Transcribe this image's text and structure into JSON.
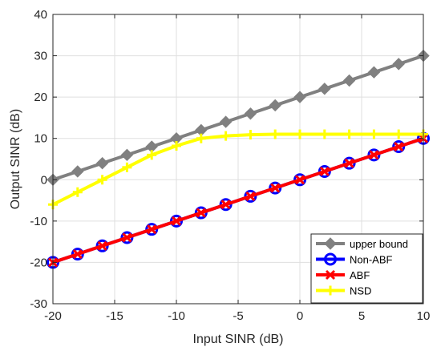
{
  "chart_data": {
    "type": "line",
    "title": "",
    "xlabel": "Input SINR (dB)",
    "ylabel": "Output SINR (dB)",
    "xlim": [
      -20,
      10
    ],
    "ylim": [
      -30,
      40
    ],
    "xticks": [
      -20,
      -15,
      -10,
      -5,
      0,
      5,
      10
    ],
    "yticks": [
      -30,
      -20,
      -10,
      0,
      10,
      20,
      30,
      40
    ],
    "grid": true,
    "legend_position": "bottom-right",
    "x": [
      -20,
      -18,
      -16,
      -14,
      -12,
      -10,
      -8,
      -6,
      -4,
      -2,
      0,
      2,
      4,
      6,
      8,
      10
    ],
    "series": [
      {
        "name": "upper bound",
        "color": "#808080",
        "marker": "diamond",
        "values": [
          0,
          2,
          4,
          6,
          8,
          10,
          12,
          14,
          16,
          18,
          20,
          22,
          24,
          26,
          28,
          30
        ]
      },
      {
        "name": "Non-ABF",
        "color": "#0000ff",
        "marker": "circle",
        "values": [
          -20,
          -18,
          -16,
          -14,
          -12,
          -10,
          -8,
          -6,
          -4,
          -2,
          0,
          2,
          4,
          6,
          8,
          10
        ]
      },
      {
        "name": "ABF",
        "color": "#ff0000",
        "marker": "x",
        "values": [
          -20,
          -18,
          -16,
          -14,
          -12,
          -10,
          -8,
          -6,
          -4,
          -2,
          0,
          2,
          4,
          6,
          8,
          10
        ]
      },
      {
        "name": "NSD",
        "color": "#ffff00",
        "marker": "plus",
        "values": [
          -6,
          -3,
          0,
          3,
          6,
          8.2,
          10,
          10.6,
          10.9,
          11,
          11,
          11,
          11,
          11,
          11,
          11
        ]
      }
    ]
  }
}
